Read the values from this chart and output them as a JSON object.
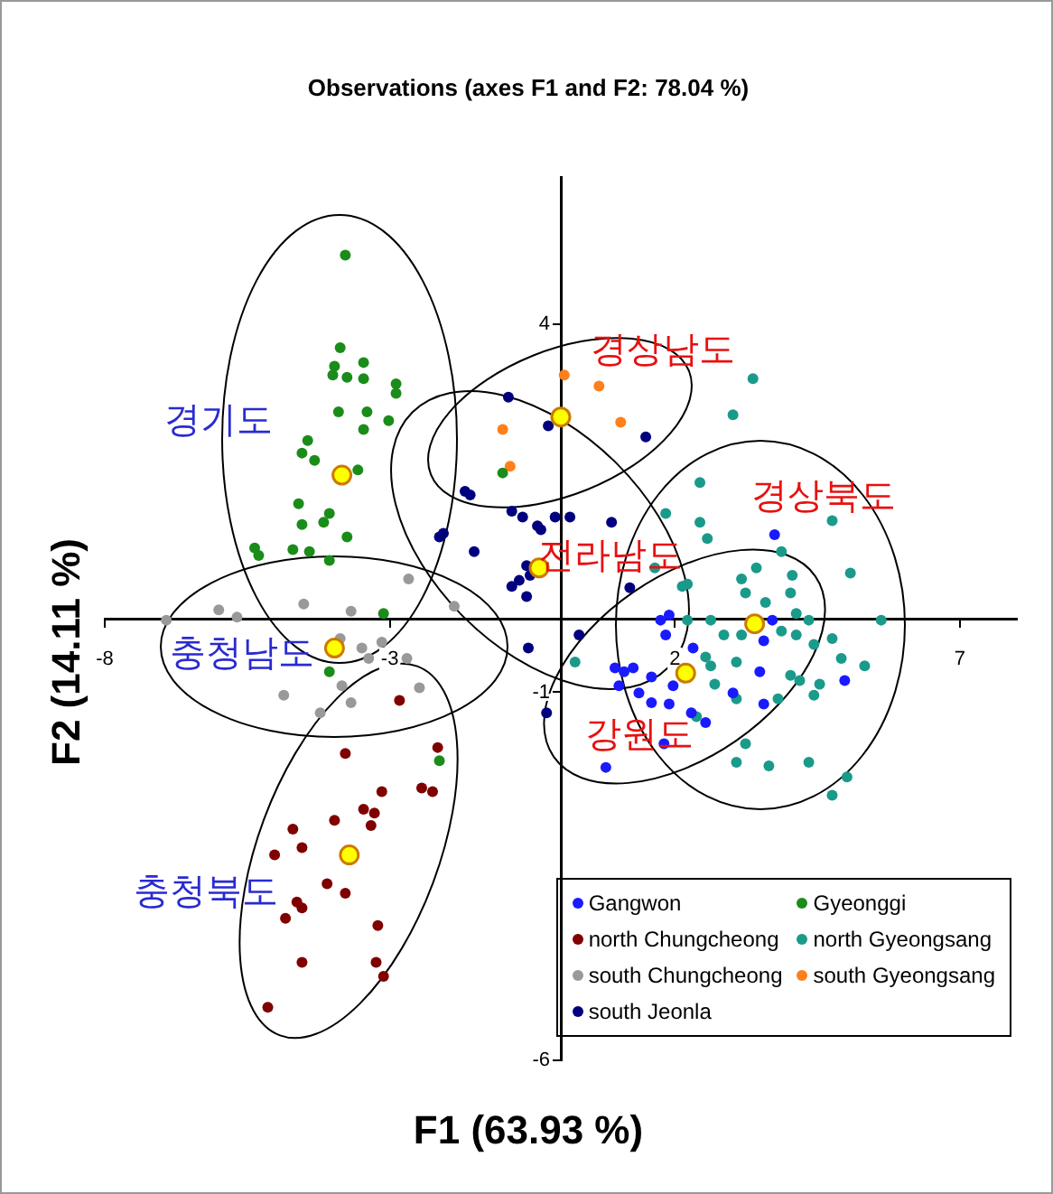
{
  "chart_data": {
    "type": "scatter",
    "title": "Observations (axes F1 and F2: 78.04 %)",
    "xlabel": "F1 (63.93 %)",
    "ylabel": "F2 (14.11 %)",
    "xlim": [
      -8,
      8
    ],
    "ylim": [
      -6,
      6
    ],
    "xticks": [
      -8,
      -3,
      2,
      7
    ],
    "yticks": [
      4,
      -1,
      -6
    ],
    "grid": false,
    "legend": "bottom right",
    "marker": "circle",
    "series": [
      {
        "name": "Gangwon",
        "color": "#1a1aff",
        "x": [
          0.95,
          1.11,
          1.27,
          1.02,
          1.59,
          1.37,
          1.59,
          1.9,
          1.97,
          2.29,
          2.54,
          1.81,
          0.79,
          1.75,
          1.84,
          2.32,
          3.56,
          3.49,
          3.56,
          3.02,
          4.98,
          3.75,
          1.9,
          3.71
        ],
        "values": [
          -0.67,
          -0.72,
          -0.67,
          -0.91,
          -0.79,
          -1.01,
          -1.14,
          -1.16,
          -0.91,
          -1.28,
          -1.41,
          -1.7,
          -2.02,
          -0.02,
          -0.22,
          -0.4,
          -0.3,
          -0.72,
          -1.16,
          -1.01,
          -0.84,
          1.14,
          0.05,
          -0.02
        ]
      },
      {
        "name": "Gyeonggi",
        "color": "#1a8c1a",
        "x": [
          -3.78,
          -3.87,
          -3.97,
          -3.46,
          -4.0,
          -3.75,
          -3.46,
          -2.89,
          -2.89,
          -3.9,
          -3.4,
          -3.02,
          -3.46,
          -4.44,
          -4.54,
          -4.32,
          -3.56,
          -4.6,
          -4.54,
          -4.06,
          -4.16,
          -3.75,
          -5.37,
          -5.3,
          -4.7,
          -4.41,
          -4.06,
          -3.11,
          -1.02,
          -4.06,
          -2.13
        ],
        "values": [
          4.94,
          3.68,
          3.43,
          3.48,
          3.31,
          3.28,
          3.26,
          3.19,
          3.06,
          2.81,
          2.81,
          2.69,
          2.57,
          2.42,
          2.25,
          2.15,
          2.02,
          1.56,
          1.28,
          1.43,
          1.31,
          1.11,
          0.96,
          0.86,
          0.94,
          0.91,
          0.79,
          0.07,
          1.98,
          -0.72,
          -1.93
        ]
      },
      {
        "name": "north Chungcheong",
        "color": "#800000",
        "x": [
          -2.83,
          -3.78,
          -2.16,
          -3.14,
          -2.44,
          -2.25,
          -3.46,
          -3.27,
          -3.33,
          -3.97,
          -4.7,
          -4.54,
          -5.02,
          -4.1,
          -3.78,
          -4.63,
          -4.54,
          -4.83,
          -3.21,
          -4.54,
          -3.24,
          -3.11,
          -5.14
        ],
        "values": [
          -1.11,
          -1.83,
          -1.75,
          -2.35,
          -2.3,
          -2.35,
          -2.59,
          -2.64,
          -2.81,
          -2.74,
          -2.86,
          -3.11,
          -3.21,
          -3.6,
          -3.73,
          -3.85,
          -3.93,
          -4.07,
          -4.17,
          -4.67,
          -4.67,
          -4.86,
          -5.28
        ]
      },
      {
        "name": "north Gyeongsang",
        "color": "#1a9a8a",
        "x": [
          3.37,
          3.02,
          2.44,
          1.84,
          2.44,
          2.57,
          4.76,
          5.08,
          3.87,
          3.43,
          3.17,
          4.06,
          2.22,
          1.65,
          4.03,
          3.59,
          3.24,
          2.13,
          2.22,
          2.63,
          2.86,
          3.17,
          3.87,
          4.13,
          4.35,
          4.13,
          4.44,
          4.76,
          5.62,
          2.54,
          2.63,
          3.08,
          4.03,
          4.19,
          4.54,
          4.92,
          5.33,
          4.44,
          3.81,
          3.08,
          2.7,
          0.25,
          2.38,
          3.24,
          3.08,
          3.65,
          4.35,
          5.02,
          4.76
        ],
        "values": [
          3.26,
          2.77,
          1.85,
          1.43,
          1.31,
          1.09,
          1.33,
          0.62,
          0.91,
          0.69,
          0.54,
          0.59,
          0.47,
          0.69,
          0.35,
          0.22,
          0.35,
          0.44,
          -0.02,
          -0.02,
          -0.22,
          -0.22,
          -0.17,
          0.07,
          -0.02,
          -0.22,
          -0.35,
          -0.27,
          -0.02,
          -0.52,
          -0.64,
          -0.59,
          -0.77,
          -0.84,
          -0.89,
          -0.54,
          -0.64,
          -1.04,
          -1.09,
          -1.09,
          -0.89,
          -0.59,
          -1.33,
          -1.7,
          -1.95,
          -2.0,
          -1.95,
          -2.15,
          -2.4
        ]
      },
      {
        "name": "south Chungcheong",
        "color": "#999999",
        "x": [
          -2.67,
          -1.87,
          -4.51,
          -6.0,
          -3.68,
          -6.92,
          -5.68,
          -3.87,
          -3.49,
          -3.37,
          -3.14,
          -2.7,
          -3.84,
          -3.68,
          -2.48,
          -4.86,
          -4.22
        ],
        "values": [
          0.54,
          0.17,
          0.2,
          0.12,
          0.1,
          -0.02,
          0.02,
          -0.27,
          -0.4,
          -0.54,
          -0.32,
          -0.54,
          -0.91,
          -1.14,
          -0.94,
          -1.04,
          -1.28
        ]
      },
      {
        "name": "south Gyeongsang",
        "color": "#ff7f1a",
        "x": [
          0.06,
          -1.02,
          -0.89,
          0.67,
          1.05
        ],
        "values": [
          3.31,
          2.57,
          2.07,
          3.16,
          2.67
        ]
      },
      {
        "name": "south Jeonla",
        "color": "#00007f",
        "x": [
          -0.92,
          -0.22,
          -1.68,
          -1.59,
          -0.86,
          -0.67,
          -0.35,
          -0.1,
          0.16,
          -0.41,
          -2.13,
          -2.06,
          -1.52,
          -0.86,
          -0.73,
          -0.6,
          -0.54,
          1.49,
          0.89,
          -0.6,
          1.21,
          0.32,
          -0.57,
          -0.25
        ],
        "values": [
          3.01,
          2.62,
          1.73,
          1.68,
          1.46,
          1.38,
          1.21,
          1.38,
          1.38,
          1.26,
          1.11,
          1.16,
          0.91,
          0.44,
          0.52,
          0.3,
          0.59,
          2.47,
          1.31,
          0.72,
          0.42,
          -0.22,
          -0.4,
          -1.28
        ]
      },
      {
        "color": "#ffff00",
        "x": [
          -3.84,
          0,
          -0.38,
          3.4,
          2.19,
          -3.97,
          -3.71
        ],
        "values": [
          1.95,
          2.74,
          0.69,
          -0.07,
          -0.74,
          -0.4,
          -3.21
        ]
      }
    ],
    "annotations": [
      "경기도",
      "경상남도",
      "경상북도",
      "전라남도",
      "충청남도",
      "충청북도",
      "강원도"
    ]
  }
}
